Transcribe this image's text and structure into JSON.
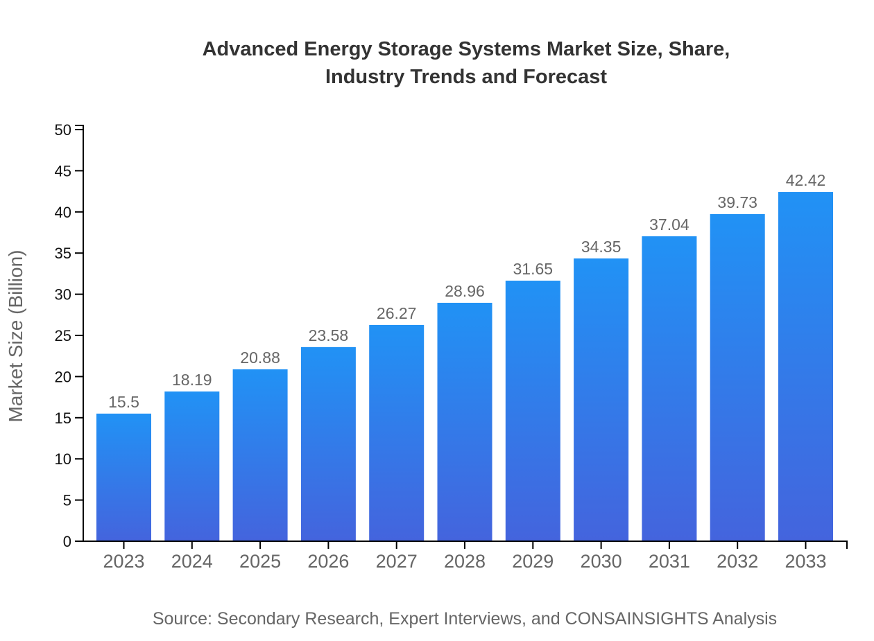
{
  "title": {
    "line1": "Advanced Energy Storage Systems Market Size, Share,",
    "line2": "Industry Trends and Forecast"
  },
  "source": "Source: Secondary Research, Expert Interviews, and CONSAINSIGHTS Analysis",
  "colors": {
    "bar_top": "#2192f5",
    "bar_bottom": "#4464dd",
    "axis": "#000000",
    "title_text": "#333333",
    "muted_text": "#666666",
    "tick_label": "#111111",
    "background": "#ffffff"
  },
  "chart_data": {
    "type": "bar",
    "title": "Advanced Energy Storage Systems Market Size, Share, Industry Trends and Forecast",
    "xlabel": "",
    "ylabel": "Market Size (Billion)",
    "categories": [
      "2023",
      "2024",
      "2025",
      "2026",
      "2027",
      "2028",
      "2029",
      "2030",
      "2031",
      "2032",
      "2033"
    ],
    "values": [
      15.5,
      18.19,
      20.88,
      23.58,
      26.27,
      28.96,
      31.65,
      34.35,
      37.04,
      39.73,
      42.42
    ],
    "value_labels": [
      "15.5",
      "18.19",
      "20.88",
      "23.58",
      "26.27",
      "28.96",
      "31.65",
      "34.35",
      "37.04",
      "39.73",
      "42.42"
    ],
    "ylim": [
      0,
      50
    ],
    "ytick_step": 5,
    "grid": false,
    "legend": null,
    "bar_gradient": {
      "top": "#2192f5",
      "bottom": "#4464dd"
    }
  }
}
